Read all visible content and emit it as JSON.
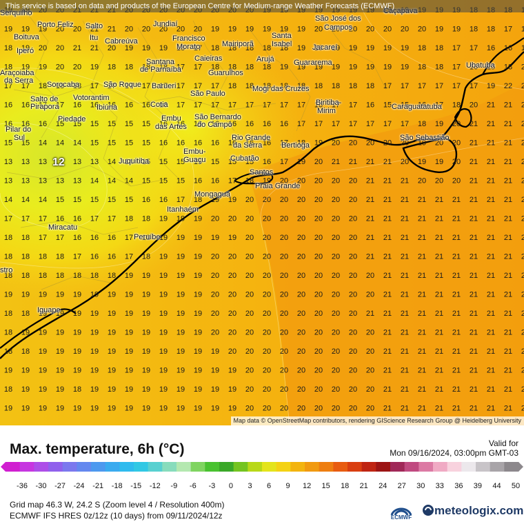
{
  "banner_text": "This service is based on data and products of the European Centre for Medium-range Weather Forecasts (ECMWF)",
  "attribution": "Map data © OpenStreetMap contributors, rendering GIScience Research Group @ Heidelberg University",
  "legend": {
    "title": "Max. temperature, 6h (°C)",
    "valid_label": "Valid for",
    "valid_time": "Mon 09/16/2024, 03:00pm GMT-03",
    "tick_labels": [
      "-36",
      "-30",
      "-27",
      "-24",
      "-21",
      "-18",
      "-15",
      "-12",
      "-9",
      "-6",
      "-3",
      "0",
      "3",
      "6",
      "9",
      "12",
      "15",
      "18",
      "21",
      "24",
      "27",
      "30",
      "33",
      "36",
      "39",
      "44",
      "50"
    ]
  },
  "footer": {
    "grid_info": "Grid map 46.3 W, 24.2 S (Zoom level 4 / Resolution 400m)",
    "model_info": "ECMWF IFS HRES 0z/12z (10 days) from 09/11/2024/12z",
    "ecmwf_logo": "ECMWF",
    "brand": "meteologix.com"
  },
  "map": {
    "min_label": "12",
    "grid_values": [
      [
        "19",
        "19",
        "20",
        "20",
        "21",
        "21",
        "21",
        "20",
        "20",
        "20",
        "20",
        "20",
        "20",
        "20",
        "20",
        "19",
        "19",
        "19",
        "19",
        "19",
        "19",
        "19",
        "19",
        "19",
        "19",
        "19",
        "19",
        "18",
        "18",
        "18",
        "18"
      ],
      [
        "19",
        "19",
        "19",
        "20",
        "20",
        "21",
        "21",
        "20",
        "20",
        "20",
        "20",
        "20",
        "19",
        "19",
        "19",
        "19",
        "19",
        "19",
        "20",
        "20",
        "20",
        "20",
        "20",
        "20",
        "20",
        "19",
        "19",
        "18",
        "18",
        "17",
        "16"
      ],
      [
        "18",
        "19",
        "20",
        "20",
        "21",
        "21",
        "20",
        "19",
        "19",
        "19",
        "18",
        "17",
        "18",
        "18",
        "18",
        "18",
        "18",
        "19",
        "19",
        "19",
        "19",
        "19",
        "19",
        "19",
        "18",
        "18",
        "17",
        "17",
        "16",
        "16",
        "17"
      ],
      [
        "18",
        "19",
        "19",
        "20",
        "20",
        "19",
        "18",
        "18",
        "18",
        "18",
        "17",
        "17",
        "18",
        "18",
        "18",
        "18",
        "19",
        "19",
        "19",
        "19",
        "19",
        "19",
        "19",
        "19",
        "18",
        "18",
        "17",
        "16",
        "15",
        "18",
        "21"
      ],
      [
        "17",
        "17",
        "18",
        "18",
        "18",
        "17",
        "17",
        "17",
        "17",
        "17",
        "17",
        "17",
        "17",
        "18",
        "18",
        "18",
        "18",
        "18",
        "18",
        "18",
        "18",
        "18",
        "17",
        "17",
        "17",
        "17",
        "17",
        "17",
        "19",
        "22",
        "22"
      ],
      [
        "16",
        "16",
        "17",
        "17",
        "16",
        "16",
        "16",
        "16",
        "16",
        "16",
        "17",
        "17",
        "17",
        "17",
        "17",
        "17",
        "17",
        "17",
        "16",
        "17",
        "17",
        "16",
        "15",
        "15",
        "16",
        "17",
        "18",
        "20",
        "21",
        "21",
        "21"
      ],
      [
        "16",
        "16",
        "16",
        "15",
        "15",
        "15",
        "15",
        "15",
        "15",
        "16",
        "16",
        "16",
        "16",
        "16",
        "16",
        "16",
        "16",
        "17",
        "17",
        "17",
        "17",
        "17",
        "17",
        "17",
        "18",
        "19",
        "20",
        "21",
        "21",
        "21",
        "21"
      ],
      [
        "15",
        "15",
        "14",
        "14",
        "14",
        "15",
        "15",
        "15",
        "15",
        "16",
        "16",
        "16",
        "16",
        "16",
        "16",
        "16",
        "17",
        "18",
        "19",
        "20",
        "20",
        "20",
        "20",
        "20",
        "19",
        "20",
        "20",
        "21",
        "21",
        "21",
        "21"
      ],
      [
        "13",
        "13",
        "13",
        "12",
        "13",
        "13",
        "14",
        "14",
        "15",
        "15",
        "15",
        "15",
        "15",
        "15",
        "15",
        "16",
        "17",
        "19",
        "20",
        "21",
        "21",
        "21",
        "21",
        "20",
        "19",
        "19",
        "20",
        "21",
        "21",
        "21",
        "21"
      ],
      [
        "13",
        "13",
        "13",
        "13",
        "13",
        "14",
        "14",
        "14",
        "15",
        "15",
        "15",
        "16",
        "16",
        "17",
        "18",
        "19",
        "20",
        "20",
        "20",
        "20",
        "20",
        "21",
        "21",
        "21",
        "20",
        "20",
        "20",
        "21",
        "21",
        "21",
        "21"
      ],
      [
        "14",
        "14",
        "14",
        "15",
        "15",
        "15",
        "15",
        "15",
        "16",
        "16",
        "17",
        "18",
        "19",
        "19",
        "20",
        "20",
        "20",
        "20",
        "20",
        "20",
        "20",
        "21",
        "21",
        "21",
        "21",
        "21",
        "21",
        "21",
        "21",
        "21",
        "21"
      ],
      [
        "17",
        "17",
        "17",
        "16",
        "16",
        "17",
        "17",
        "18",
        "18",
        "19",
        "19",
        "19",
        "20",
        "20",
        "20",
        "20",
        "20",
        "20",
        "20",
        "20",
        "20",
        "21",
        "21",
        "21",
        "21",
        "21",
        "21",
        "21",
        "21",
        "21",
        "21"
      ],
      [
        "18",
        "18",
        "17",
        "17",
        "16",
        "16",
        "16",
        "17",
        "18",
        "19",
        "19",
        "19",
        "19",
        "19",
        "20",
        "20",
        "20",
        "20",
        "20",
        "20",
        "20",
        "21",
        "21",
        "21",
        "21",
        "21",
        "21",
        "21",
        "21",
        "21",
        "21"
      ],
      [
        "18",
        "18",
        "18",
        "18",
        "17",
        "16",
        "16",
        "17",
        "18",
        "19",
        "19",
        "19",
        "20",
        "20",
        "20",
        "20",
        "20",
        "20",
        "20",
        "20",
        "20",
        "21",
        "21",
        "21",
        "21",
        "21",
        "21",
        "21",
        "21",
        "21",
        "21"
      ],
      [
        "18",
        "18",
        "18",
        "18",
        "18",
        "18",
        "18",
        "19",
        "19",
        "19",
        "19",
        "19",
        "20",
        "20",
        "20",
        "20",
        "20",
        "20",
        "20",
        "20",
        "20",
        "20",
        "21",
        "21",
        "21",
        "21",
        "21",
        "21",
        "21",
        "21",
        "21"
      ],
      [
        "19",
        "19",
        "19",
        "19",
        "19",
        "19",
        "19",
        "19",
        "19",
        "19",
        "19",
        "19",
        "20",
        "20",
        "20",
        "20",
        "20",
        "20",
        "20",
        "20",
        "20",
        "20",
        "21",
        "21",
        "21",
        "21",
        "21",
        "21",
        "21",
        "21",
        "21"
      ],
      [
        "18",
        "18",
        "19",
        "19",
        "19",
        "19",
        "19",
        "19",
        "19",
        "19",
        "19",
        "19",
        "20",
        "20",
        "20",
        "20",
        "20",
        "20",
        "20",
        "20",
        "20",
        "21",
        "21",
        "21",
        "21",
        "21",
        "21",
        "21",
        "21",
        "21",
        "21"
      ],
      [
        "18",
        "19",
        "19",
        "19",
        "19",
        "19",
        "19",
        "19",
        "19",
        "19",
        "19",
        "19",
        "20",
        "20",
        "20",
        "20",
        "20",
        "20",
        "20",
        "20",
        "20",
        "20",
        "21",
        "21",
        "21",
        "21",
        "21",
        "21",
        "21",
        "21",
        "21"
      ],
      [
        "18",
        "18",
        "19",
        "19",
        "19",
        "19",
        "19",
        "19",
        "19",
        "19",
        "19",
        "19",
        "19",
        "20",
        "20",
        "20",
        "20",
        "20",
        "20",
        "20",
        "20",
        "20",
        "21",
        "21",
        "21",
        "21",
        "21",
        "21",
        "21",
        "21",
        "21"
      ],
      [
        "19",
        "19",
        "19",
        "19",
        "19",
        "19",
        "19",
        "19",
        "19",
        "19",
        "19",
        "19",
        "19",
        "19",
        "20",
        "20",
        "20",
        "20",
        "20",
        "20",
        "20",
        "20",
        "21",
        "21",
        "21",
        "21",
        "21",
        "21",
        "21",
        "21",
        "21"
      ],
      [
        "18",
        "19",
        "19",
        "19",
        "18",
        "19",
        "19",
        "19",
        "19",
        "19",
        "19",
        "19",
        "19",
        "19",
        "20",
        "20",
        "20",
        "20",
        "20",
        "20",
        "20",
        "20",
        "21",
        "21",
        "21",
        "21",
        "21",
        "21",
        "21",
        "21",
        "21"
      ],
      [
        "19",
        "19",
        "19",
        "19",
        "19",
        "19",
        "19",
        "19",
        "19",
        "19",
        "19",
        "19",
        "19",
        "19",
        "20",
        "20",
        "20",
        "20",
        "20",
        "20",
        "20",
        "20",
        "21",
        "21",
        "21",
        "21",
        "21",
        "21",
        "21",
        "21",
        "21"
      ]
    ],
    "cities": [
      {
        "name": "Serquilho"
      },
      {
        "name": "Porto Feliz"
      },
      {
        "name": "Salto"
      },
      {
        "name": "Jundiaí"
      },
      {
        "name": "São José dos"
      },
      {
        "name": "Campos"
      },
      {
        "name": "Caçapava"
      },
      {
        "name": "Boituva"
      },
      {
        "name": "Itu"
      },
      {
        "name": "Cabreúva"
      },
      {
        "name": "Francisco"
      },
      {
        "name": "Morato"
      },
      {
        "name": "Mairiporã"
      },
      {
        "name": "Santa"
      },
      {
        "name": "Isabel"
      },
      {
        "name": "Jacareí"
      },
      {
        "name": "Iperó"
      },
      {
        "name": "Caieiras"
      },
      {
        "name": "Arujá"
      },
      {
        "name": "Guararema"
      },
      {
        "name": "Santana"
      },
      {
        "name": "de Parnaíba"
      },
      {
        "name": "Guarulhos"
      },
      {
        "name": "Ubatuba"
      },
      {
        "name": "Araçoiaba"
      },
      {
        "name": "da Serra"
      },
      {
        "name": "Sorocaba"
      },
      {
        "name": "São Roque"
      },
      {
        "name": "Barueri"
      },
      {
        "name": "Mogi das Cruzes"
      },
      {
        "name": "São Paulo"
      },
      {
        "name": "Salto de"
      },
      {
        "name": "Pirapora"
      },
      {
        "name": "Votorantim"
      },
      {
        "name": "Ibiúna"
      },
      {
        "name": "Cotia"
      },
      {
        "name": "São Bernardo"
      },
      {
        "name": "do Campo"
      },
      {
        "name": "Biritiba-"
      },
      {
        "name": "Mirim"
      },
      {
        "name": "Caraguatatuba"
      },
      {
        "name": "Piedade"
      },
      {
        "name": "Embu"
      },
      {
        "name": "das Artes"
      },
      {
        "name": "Pilar do"
      },
      {
        "name": "Sul"
      },
      {
        "name": "Rio Grande"
      },
      {
        "name": "da Serra"
      },
      {
        "name": "São Sebastião"
      },
      {
        "name": "Bertioga"
      },
      {
        "name": "Embu-"
      },
      {
        "name": "Guaçu"
      },
      {
        "name": "Juquitiba"
      },
      {
        "name": "Cubatão"
      },
      {
        "name": "Santos"
      },
      {
        "name": "Praia Grande"
      },
      {
        "name": "Mongaguá"
      },
      {
        "name": "Itanhaém"
      },
      {
        "name": "Miracatu"
      },
      {
        "name": "Peruíbe"
      },
      {
        "name": "stro"
      },
      {
        "name": "Iguape"
      }
    ]
  }
}
